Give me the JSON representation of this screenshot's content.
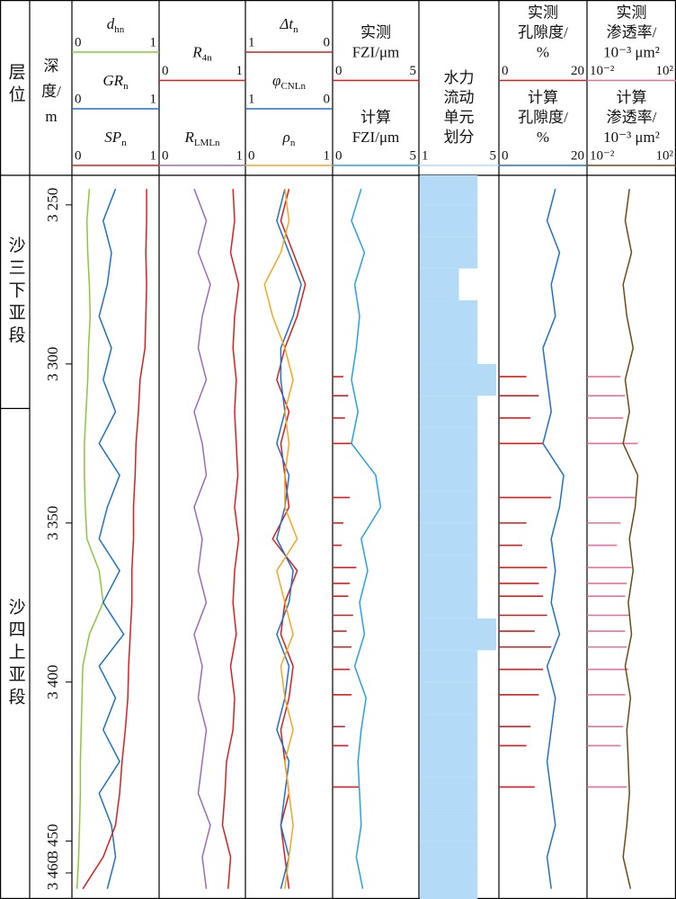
{
  "chart_data": {
    "type": "well_log",
    "zone_header": "层位",
    "depth_header": [
      "深",
      "度/",
      "m"
    ],
    "ylim": [
      3240.7,
      3468.2
    ],
    "yticks": [
      {
        "value": 3250,
        "label": "3 250"
      },
      {
        "value": 3300,
        "label": "3 300"
      },
      {
        "value": 3350,
        "label": "3 350"
      },
      {
        "value": 3400,
        "label": "3 400"
      },
      {
        "value": 3450,
        "label": "3 450"
      },
      {
        "value": 3460,
        "label": "3 460"
      }
    ],
    "zones": [
      "沙三下亚段",
      "沙四上亚段"
    ],
    "zone_boundaries": [
      3314
    ],
    "depths": [
      3245,
      3255,
      3265,
      3275,
      3285,
      3295,
      3305,
      3315,
      3325,
      3335,
      3345,
      3355,
      3365,
      3375,
      3385,
      3395,
      3405,
      3415,
      3425,
      3435,
      3445,
      3455,
      3465
    ],
    "core_depths": [
      3304,
      3310,
      3317,
      3325,
      3342,
      3350,
      3357,
      3364,
      3369,
      3373,
      3379,
      3384,
      3389,
      3396,
      3404,
      3414,
      3420,
      3433
    ],
    "tracks": [
      {
        "curves": [
          {
            "title": [
              "d"
            ],
            "sub": "hn",
            "color": "#8cc63e",
            "lim": [
              0,
              1
            ],
            "style": "line",
            "values": [
              0.18,
              0.15,
              0.16,
              0.18,
              0.19,
              0.17,
              0.16,
              0.14,
              0.12,
              0.12,
              0.13,
              0.15,
              0.3,
              0.35,
              0.18,
              0.1,
              0.09,
              0.08,
              0.07,
              0.07,
              0.06,
              0.05,
              0.03
            ]
          },
          {
            "title": [
              "GR"
            ],
            "sub": "n",
            "color": "#1f72c8",
            "lim": [
              0,
              1
            ],
            "style": "line",
            "values": [
              0.5,
              0.35,
              0.45,
              0.4,
              0.3,
              0.45,
              0.35,
              0.5,
              0.3,
              0.55,
              0.4,
              0.3,
              0.55,
              0.35,
              0.6,
              0.3,
              0.5,
              0.35,
              0.55,
              0.3,
              0.45,
              0.5,
              0.4
            ]
          },
          {
            "title": [
              "SP"
            ],
            "sub": "n",
            "color": "#d42020",
            "lim": [
              0,
              1
            ],
            "style": "line",
            "values": [
              0.88,
              0.88,
              0.87,
              0.88,
              0.87,
              0.86,
              0.8,
              0.78,
              0.75,
              0.74,
              0.72,
              0.72,
              0.7,
              0.7,
              0.68,
              0.66,
              0.65,
              0.62,
              0.58,
              0.55,
              0.5,
              0.35,
              0.1
            ]
          }
        ]
      },
      {
        "curves": [
          {
            "title": [
              "R"
            ],
            "sub": "4n",
            "color": "#d42020",
            "lim": [
              0,
              1
            ],
            "style": "line",
            "values": [
              0.88,
              0.9,
              0.85,
              0.95,
              0.9,
              0.88,
              0.92,
              0.9,
              0.92,
              0.94,
              0.9,
              0.95,
              0.9,
              0.88,
              0.92,
              0.85,
              0.9,
              0.88,
              0.8,
              0.78,
              0.75,
              0.85,
              0.82
            ]
          },
          {
            "title": [
              "R"
            ],
            "sub": "LMLn",
            "color": "#9a6cb8",
            "lim": [
              0,
              1
            ],
            "style": "line",
            "values": [
              0.4,
              0.55,
              0.45,
              0.6,
              0.5,
              0.45,
              0.55,
              0.4,
              0.5,
              0.55,
              0.4,
              0.5,
              0.45,
              0.55,
              0.4,
              0.5,
              0.45,
              0.55,
              0.5,
              0.45,
              0.6,
              0.5,
              0.55
            ]
          }
        ]
      },
      {
        "curves": [
          {
            "title": [
              "Δt"
            ],
            "sub": "n",
            "color": "#d42020",
            "lim": [
              1,
              0
            ],
            "style": "line",
            "values": [
              0.5,
              0.6,
              0.45,
              0.3,
              0.4,
              0.55,
              0.65,
              0.5,
              0.6,
              0.55,
              0.5,
              0.7,
              0.4,
              0.55,
              0.6,
              0.45,
              0.5,
              0.6,
              0.55,
              0.5,
              0.6,
              0.55,
              0.5
            ]
          },
          {
            "title": [
              "φ"
            ],
            "sub": "CNLn",
            "color": "#1f72c8",
            "lim": [
              1,
              0
            ],
            "style": "line",
            "values": [
              0.55,
              0.65,
              0.5,
              0.35,
              0.45,
              0.6,
              0.6,
              0.55,
              0.65,
              0.5,
              0.55,
              0.65,
              0.45,
              0.5,
              0.65,
              0.5,
              0.55,
              0.65,
              0.5,
              0.55,
              0.6,
              0.5,
              0.6
            ]
          },
          {
            "title": [
              "ρ"
            ],
            "sub": "n",
            "color": "#f5a623",
            "lim": [
              0,
              1
            ],
            "style": "line",
            "values": [
              0.45,
              0.5,
              0.4,
              0.2,
              0.3,
              0.45,
              0.55,
              0.45,
              0.5,
              0.45,
              0.45,
              0.6,
              0.35,
              0.45,
              0.55,
              0.4,
              0.45,
              0.55,
              0.45,
              0.5,
              0.55,
              0.5,
              0.45
            ]
          }
        ]
      },
      {
        "curves": [
          {
            "title": [
              "实测",
              "FZI/μm"
            ],
            "color": "#d42020",
            "lim": [
              0,
              5
            ],
            "style": "samples",
            "values": [
              0.5,
              0.8,
              0.6,
              1.0,
              0.9,
              0.5,
              0.4,
              1.3,
              0.9,
              0.8,
              1.1,
              0.7,
              1.0,
              0.9,
              1.0,
              0.6,
              0.8,
              1.5
            ]
          },
          {
            "title": [
              "计算",
              "FZI/μm"
            ],
            "color": "#29a0e6",
            "lim": [
              0,
              5
            ],
            "style": "line",
            "values": [
              1.6,
              1.0,
              1.8,
              1.2,
              1.5,
              1.3,
              1.0,
              1.4,
              1.0,
              2.5,
              2.8,
              1.6,
              2.0,
              1.5,
              1.8,
              1.2,
              1.9,
              1.6,
              1.4,
              1.5,
              1.6,
              1.3,
              1.7
            ]
          }
        ]
      },
      {
        "curves": [
          {
            "title": [
              "水力",
              "流动",
              "单元",
              "划分"
            ],
            "color": "#b3dbf7",
            "lim": [
              1,
              5
            ],
            "style": "bars",
            "values": [
              4,
              4,
              4,
              3,
              4,
              4,
              5,
              4,
              4,
              4,
              4,
              4,
              4,
              4,
              5,
              4,
              4,
              4,
              4,
              4,
              4,
              4,
              4
            ]
          }
        ]
      },
      {
        "curves": [
          {
            "title": [
              "实测",
              "孔隙度/",
              "%"
            ],
            "color": "#d42020",
            "lim": [
              0,
              20
            ],
            "style": "samples",
            "values": [
              6,
              9,
              7,
              10,
              12,
              6,
              5,
              11,
              9,
              10,
              11,
              8,
              12,
              10,
              9,
              7,
              6,
              8
            ]
          },
          {
            "title": [
              "计算",
              "孔隙度/",
              "%"
            ],
            "color": "#1f72c8",
            "lim": [
              0,
              20
            ],
            "style": "line",
            "values": [
              13,
              11,
              14,
              12,
              13,
              10,
              11,
              12,
              10,
              15,
              14,
              12,
              13,
              12,
              14,
              11,
              13,
              12,
              11,
              12,
              13,
              11,
              12
            ]
          }
        ]
      },
      {
        "curves": [
          {
            "title": [
              "实测",
              "渗透率/",
              "10⁻³ μm²"
            ],
            "color": "#e8709c",
            "log": true,
            "lim": [
              {
                "value": 0.01,
                "label": "10⁻²"
              },
              {
                "value": 100,
                "label": "10²"
              }
            ],
            "style": "samples",
            "values": [
              0.3,
              0.5,
              0.4,
              2,
              1.5,
              0.3,
              0.2,
              1,
              0.6,
              0.5,
              0.8,
              0.5,
              0.6,
              0.7,
              0.5,
              0.4,
              0.3,
              0.6
            ]
          },
          {
            "title": [
              "计算",
              "渗透率/",
              "10⁻³ μm²"
            ],
            "color": "#6b4a16",
            "log": true,
            "lim": [
              {
                "value": 0.01,
                "label": "10⁻²"
              },
              {
                "value": 100,
                "label": "10²"
              }
            ],
            "style": "line",
            "values": [
              0.8,
              0.5,
              1,
              0.4,
              0.6,
              1.2,
              0.5,
              0.8,
              0.4,
              2,
              1.5,
              0.8,
              1.2,
              0.7,
              1,
              0.5,
              0.9,
              0.6,
              0.7,
              0.8,
              0.6,
              0.4,
              0.9
            ]
          }
        ]
      }
    ]
  }
}
